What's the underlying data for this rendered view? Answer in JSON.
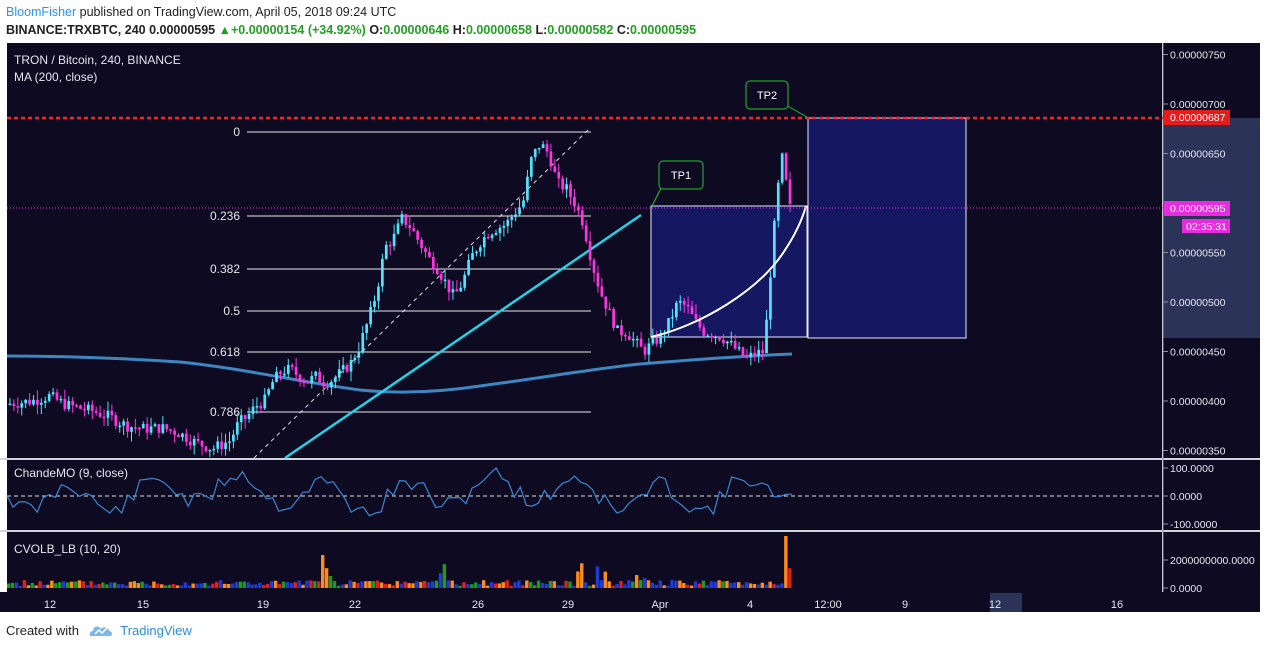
{
  "header": {
    "author": "BloomFisher",
    "published": "published on TradingView.com, April 05, 2018 09:24 UTC",
    "symbol": "BINANCE:TRXBTC, 240",
    "last": "0.00000595",
    "change": "+0.00000154 (+34.92%)",
    "o_label": "O:",
    "o": "0.00000646",
    "h_label": "H:",
    "h": "0.00000658",
    "l_label": "L:",
    "l": "0.00000582",
    "c_label": "C:",
    "c": "0.00000595"
  },
  "footer": {
    "created": "Created with",
    "brand": "TradingView"
  },
  "colors": {
    "bg": "#0d0a21",
    "up": "#4ee3ff",
    "down": "#ff33e4",
    "ma": "#3d87c1",
    "trend": "#22d3e6",
    "tp_box": "#171a6b",
    "resistance": "#ff2020",
    "price_tag": "#e62be0",
    "cmo": "#3d87d1"
  },
  "chart_data": [
    {
      "type": "candlestick",
      "title": "TRON / Bitcoin, 240, BINANCE",
      "indicator": "MA (200, close)",
      "ylim": [
        3.45e-06,
        7.85e-06
      ],
      "yticks": [
        "0.00000750",
        "0.00000700",
        "0.00000650",
        "0.00000550",
        "0.00000500",
        "0.00000450",
        "0.00000400",
        "0.00000350"
      ],
      "xticks": [
        "12",
        "15",
        "19",
        "22",
        "26",
        "29",
        "Apr",
        "4",
        "12:00",
        "9",
        "12",
        "16"
      ],
      "current_price": "0.00000595",
      "countdown": "02:35:31",
      "resistance": "0.00000687",
      "fibonacci": [
        {
          "level": "0",
          "price": 6.72e-06
        },
        {
          "level": "0.236",
          "price": 5.87e-06
        },
        {
          "level": "0.382",
          "price": 5.33e-06
        },
        {
          "level": "0.5",
          "price": 4.91e-06
        },
        {
          "level": "0.618",
          "price": 4.5e-06
        },
        {
          "level": "0.786",
          "price": 3.89e-06
        }
      ],
      "targets": [
        {
          "label": "TP1"
        },
        {
          "label": "TP2"
        }
      ],
      "close_path": [
        [
          0,
          3.97e-06
        ],
        [
          3,
          4e-06
        ],
        [
          5,
          4.05e-06
        ],
        [
          7,
          3.96e-06
        ],
        [
          10,
          3.9e-06
        ],
        [
          12,
          3.84e-06
        ],
        [
          14,
          3.75e-06
        ],
        [
          16,
          3.72e-06
        ],
        [
          18,
          3.73e-06
        ],
        [
          20,
          3.68e-06
        ],
        [
          22,
          3.58e-06
        ],
        [
          24,
          3.52e-06
        ],
        [
          26,
          3.6e-06
        ],
        [
          27,
          3.78e-06
        ],
        [
          28,
          3.84e-06
        ],
        [
          29,
          3.95e-06
        ],
        [
          30,
          4e-06
        ],
        [
          31,
          4.2e-06
        ],
        [
          32,
          4.3e-06
        ],
        [
          33,
          4.32e-06
        ],
        [
          34,
          4.25e-06
        ],
        [
          35,
          4.2e-06
        ],
        [
          36,
          4.25e-06
        ],
        [
          37,
          4.18e-06
        ],
        [
          38,
          4.22e-06
        ],
        [
          39,
          4.3e-06
        ],
        [
          40,
          4.38e-06
        ],
        [
          41,
          4.55e-06
        ],
        [
          42,
          4.8e-06
        ],
        [
          43,
          5.1e-06
        ],
        [
          44,
          5.55e-06
        ],
        [
          45,
          5.65e-06
        ],
        [
          46,
          5.85e-06
        ],
        [
          47,
          5.75e-06
        ],
        [
          48,
          5.6e-06
        ],
        [
          49,
          5.45e-06
        ],
        [
          50,
          5.35e-06
        ],
        [
          51,
          5.2e-06
        ],
        [
          52,
          5.05e-06
        ],
        [
          53,
          5.2e-06
        ],
        [
          54,
          5.45e-06
        ],
        [
          55,
          5.6e-06
        ],
        [
          56,
          5.7e-06
        ],
        [
          57,
          5.75e-06
        ],
        [
          58,
          5.78e-06
        ],
        [
          59,
          5.9e-06
        ],
        [
          60,
          6e-06
        ],
        [
          61,
          6.45e-06
        ],
        [
          62,
          6.6e-06
        ],
        [
          63,
          6.5e-06
        ],
        [
          64,
          6.2e-06
        ],
        [
          65,
          6.15e-06
        ],
        [
          66,
          6e-06
        ],
        [
          67,
          5.8e-06
        ],
        [
          68,
          5.4e-06
        ],
        [
          69,
          5.1e-06
        ],
        [
          70,
          4.9e-06
        ],
        [
          71,
          4.7e-06
        ],
        [
          72,
          4.7e-06
        ],
        [
          73,
          4.6e-06
        ],
        [
          74,
          4.5e-06
        ],
        [
          75,
          4.58e-06
        ],
        [
          76,
          4.65e-06
        ],
        [
          77,
          4.8e-06
        ],
        [
          78,
          5e-06
        ],
        [
          79,
          4.95e-06
        ],
        [
          80,
          4.8e-06
        ],
        [
          81,
          4.7e-06
        ],
        [
          82,
          4.68e-06
        ],
        [
          83,
          4.65e-06
        ],
        [
          84,
          4.58e-06
        ],
        [
          85,
          4.5e-06
        ],
        [
          86,
          4.43e-06
        ],
        [
          87,
          4.48e-06
        ],
        [
          88,
          4.5e-06
        ],
        [
          89,
          5.6e-06
        ],
        [
          90,
          6.5e-06
        ],
        [
          91,
          5.95e-06
        ]
      ]
    },
    {
      "type": "line",
      "title": "ChandeMO (9, close)",
      "ylim": [
        -100,
        100
      ],
      "yticks": [
        "100.0000",
        "0.0000",
        "-100.0000"
      ]
    },
    {
      "type": "bar",
      "title": "CVOLB_LB (10, 20)",
      "yticks": [
        "2000000000.0000",
        "0.0000"
      ]
    }
  ]
}
